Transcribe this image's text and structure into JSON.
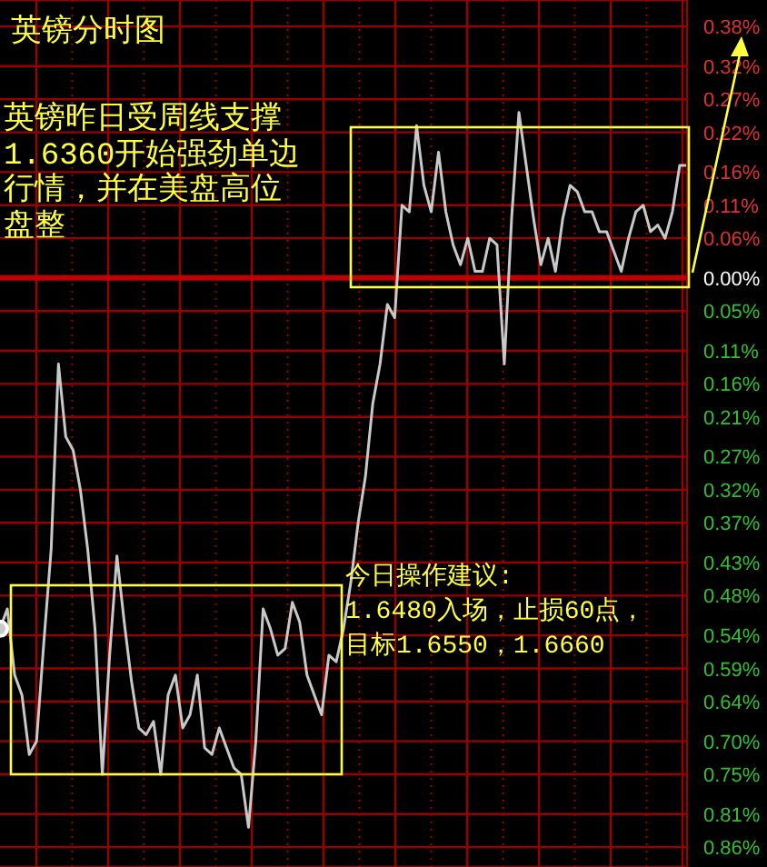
{
  "chart_data": {
    "type": "line",
    "title": "英镑分时图",
    "annotations": [
      "英镑昨日受周线支撑1.6360开始强劲单边行情，并在美盘高位盘整",
      "今日操作建议:",
      "1.6480入场，止损60点，目标1.6550，1.6660"
    ],
    "categories": [
      null,
      null,
      null,
      null,
      null,
      null,
      null,
      null,
      null,
      null,
      null,
      null,
      null,
      null,
      null,
      null,
      null,
      null,
      null,
      null,
      null,
      null,
      null,
      null,
      null,
      null,
      null,
      null,
      null,
      null,
      null,
      null,
      null,
      null,
      null,
      null,
      null,
      null,
      null,
      null,
      null,
      null,
      null,
      null,
      null,
      null,
      null,
      null,
      null,
      null,
      null,
      null,
      null,
      null,
      null,
      null,
      null,
      null,
      null,
      null,
      null,
      null,
      null,
      null,
      null,
      null,
      null,
      null,
      null,
      null,
      null,
      null,
      null,
      null,
      null,
      null,
      null,
      null,
      null,
      null,
      null,
      null,
      null,
      null,
      null,
      null,
      null,
      null,
      null,
      null,
      null,
      null,
      null,
      null,
      null
    ],
    "series": [
      {
        "color": "#c8c8c8",
        "values": [
          -0.53,
          -0.5,
          -0.6,
          -0.63,
          -0.72,
          -0.7,
          -0.55,
          -0.41,
          -0.13,
          -0.24,
          -0.26,
          -0.32,
          -0.41,
          -0.53,
          -0.75,
          -0.57,
          -0.42,
          -0.52,
          -0.61,
          -0.68,
          -0.69,
          -0.67,
          -0.75,
          -0.63,
          -0.6,
          -0.68,
          -0.66,
          -0.6,
          -0.71,
          -0.72,
          -0.68,
          -0.71,
          -0.74,
          -0.75,
          -0.83,
          -0.7,
          -0.5,
          -0.53,
          -0.57,
          -0.56,
          -0.49,
          -0.52,
          -0.6,
          -0.63,
          -0.66,
          -0.57,
          -0.58,
          -0.53,
          -0.46,
          -0.37,
          -0.3,
          -0.19,
          -0.13,
          -0.04,
          -0.06,
          0.11,
          0.1,
          0.23,
          0.14,
          0.1,
          0.19,
          0.1,
          0.05,
          0.02,
          0.06,
          0.01,
          0.01,
          0.06,
          0.05,
          -0.13,
          0.09,
          0.25,
          0.17,
          0.09,
          0.02,
          0.06,
          0.01,
          0.09,
          0.14,
          0.13,
          0.1,
          0.1,
          0.07,
          0.07,
          0.04,
          0.01,
          0.06,
          0.1,
          0.11,
          0.07,
          0.08,
          0.06,
          0.1,
          0.17,
          0.17
        ]
      }
    ],
    "ylim": [
      -0.89,
      0.42
    ],
    "yticks": [
      {
        "value": 0.38,
        "label": "0.38%"
      },
      {
        "value": 0.32,
        "label": "0.32%"
      },
      {
        "value": 0.27,
        "label": "0.27%"
      },
      {
        "value": 0.22,
        "label": "0.22%"
      },
      {
        "value": 0.16,
        "label": "0.16%"
      },
      {
        "value": 0.11,
        "label": "0.11%"
      },
      {
        "value": 0.06,
        "label": "0.06%"
      },
      {
        "value": 0,
        "label": "0.00%"
      },
      {
        "value": -0.05,
        "label": "0.05%"
      },
      {
        "value": -0.11,
        "label": "0.11%"
      },
      {
        "value": -0.16,
        "label": "0.16%"
      },
      {
        "value": -0.21,
        "label": "0.21%"
      },
      {
        "value": -0.27,
        "label": "0.27%"
      },
      {
        "value": -0.32,
        "label": "0.32%"
      },
      {
        "value": -0.37,
        "label": "0.37%"
      },
      {
        "value": -0.43,
        "label": "0.43%"
      },
      {
        "value": -0.48,
        "label": "0.48%"
      },
      {
        "value": -0.54,
        "label": "0.54%"
      },
      {
        "value": -0.59,
        "label": "0.59%"
      },
      {
        "value": -0.64,
        "label": "0.64%"
      },
      {
        "value": -0.7,
        "label": "0.70%"
      },
      {
        "value": -0.75,
        "label": "0.75%"
      },
      {
        "value": -0.81,
        "label": "0.81%"
      },
      {
        "value": -0.86,
        "label": "0.86%"
      }
    ],
    "ref_lines": [
      {
        "axis": "y",
        "value": 0,
        "color": "#c00000"
      }
    ],
    "tick_labels": "y",
    "grid": true,
    "legend": false,
    "marker": "none",
    "line_style": "solid"
  }
}
